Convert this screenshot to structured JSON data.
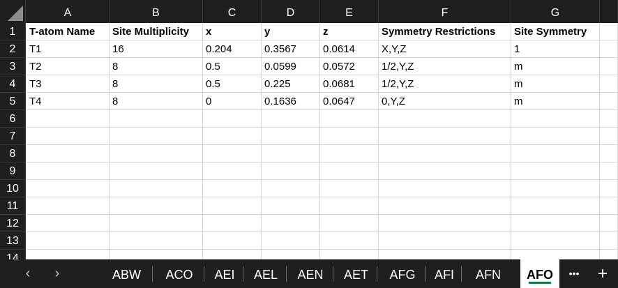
{
  "columns": [
    "A",
    "B",
    "C",
    "D",
    "E",
    "F",
    "G"
  ],
  "rows": [
    {
      "num": "1",
      "cells": [
        "T-atom Name",
        "Site Multiplicity",
        "x",
        "y",
        "z",
        "Symmetry Restrictions",
        "Site Symmetry"
      ]
    },
    {
      "num": "2",
      "cells": [
        "T1",
        "16",
        "0.204",
        "0.3567",
        "0.0614",
        "X,Y,Z",
        "1"
      ]
    },
    {
      "num": "3",
      "cells": [
        "T2",
        "8",
        "0.5",
        "0.0599",
        "0.0572",
        "1/2,Y,Z",
        "m"
      ]
    },
    {
      "num": "4",
      "cells": [
        "T3",
        "8",
        "0.5",
        "0.225",
        "0.0681",
        "1/2,Y,Z",
        "m"
      ]
    },
    {
      "num": "5",
      "cells": [
        "T4",
        "8",
        "0",
        "0.1636",
        "0.0647",
        "0,Y,Z",
        "m"
      ]
    },
    {
      "num": "6",
      "cells": [
        "",
        "",
        "",
        "",
        "",
        "",
        ""
      ]
    },
    {
      "num": "7",
      "cells": [
        "",
        "",
        "",
        "",
        "",
        "",
        ""
      ]
    },
    {
      "num": "8",
      "cells": [
        "",
        "",
        "",
        "",
        "",
        "",
        ""
      ]
    },
    {
      "num": "9",
      "cells": [
        "",
        "",
        "",
        "",
        "",
        "",
        ""
      ]
    },
    {
      "num": "10",
      "cells": [
        "",
        "",
        "",
        "",
        "",
        "",
        ""
      ]
    },
    {
      "num": "11",
      "cells": [
        "",
        "",
        "",
        "",
        "",
        "",
        ""
      ]
    },
    {
      "num": "12",
      "cells": [
        "",
        "",
        "",
        "",
        "",
        "",
        ""
      ]
    },
    {
      "num": "13",
      "cells": [
        "",
        "",
        "",
        "",
        "",
        "",
        ""
      ]
    },
    {
      "num": "14",
      "cells": [
        "",
        "",
        "",
        "",
        "",
        "",
        ""
      ]
    }
  ],
  "sheet_tabs": [
    "ABW",
    "ACO",
    "AEI",
    "AEL",
    "AEN",
    "AET",
    "AFG",
    "AFI",
    "AFN",
    "AFO"
  ],
  "active_tab": "AFO",
  "nav": {
    "prev_icon": "‹",
    "next_icon": "›",
    "more_icon": "•••",
    "add_icon": "+"
  },
  "colors": {
    "header_bg": "#1f1f1f",
    "accent": "#107c41",
    "gridline": "#d4d4d4"
  }
}
